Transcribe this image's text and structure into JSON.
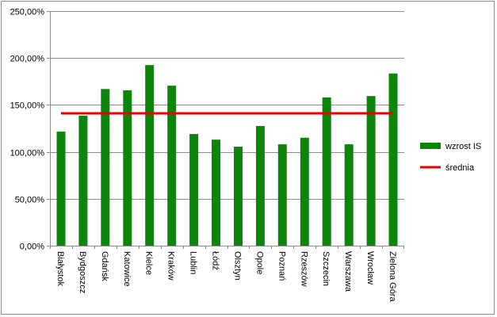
{
  "chart_data": {
    "type": "bar",
    "categories": [
      "Białystok",
      "Bydgoszcz",
      "Gdańsk",
      "Katowice",
      "Kielce",
      "Kraków",
      "Lublin",
      "Łódź",
      "Olsztyn",
      "Opole",
      "Poznań",
      "Rzeszów",
      "Szczecin",
      "Warszawa",
      "Wrocław",
      "Zielona Góra"
    ],
    "series": [
      {
        "name": "wzrost IS",
        "type": "bar",
        "color": "#0b860b",
        "values": [
          121.5,
          138.5,
          167.0,
          165.5,
          192.5,
          170.5,
          119.0,
          113.0,
          105.5,
          127.5,
          108.0,
          115.0,
          158.0,
          108.0,
          159.5,
          183.5
        ]
      },
      {
        "name": "średnia",
        "type": "line",
        "color": "#ee0000",
        "constant": 141.0
      }
    ],
    "yTickLabels": [
      "0,00%",
      "50,00%",
      "100,00%",
      "150,00%",
      "200,00%",
      "250,00%"
    ],
    "ylim": [
      0,
      250
    ],
    "grid": true,
    "legend": "right",
    "title": "",
    "xlabel": "",
    "ylabel": ""
  }
}
